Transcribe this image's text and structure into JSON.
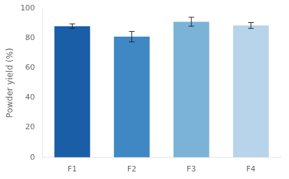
{
  "chart_data": {
    "type": "bar",
    "categories": [
      "F1",
      "F2",
      "F3",
      "F4"
    ],
    "values": [
      88.0,
      81.0,
      91.0,
      88.5
    ],
    "errors": [
      1.5,
      3.5,
      3.0,
      2.0
    ],
    "colors": [
      "#1B5EA8",
      "#4088C4",
      "#7BB3D8",
      "#B8D4EA"
    ],
    "ylabel": "Powder yield (%)",
    "ylim": [
      0,
      100
    ],
    "yticks": [
      0,
      20,
      40,
      60,
      80,
      100
    ],
    "grid": false
  }
}
